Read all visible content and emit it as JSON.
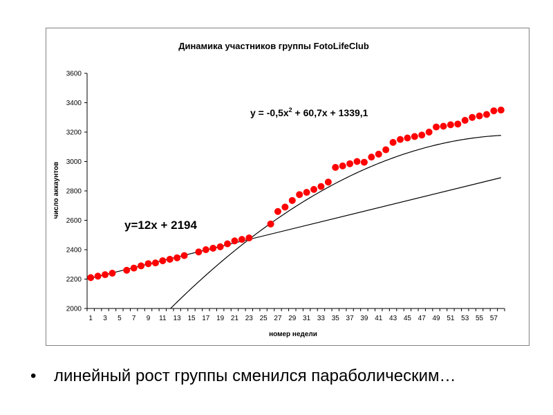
{
  "chart_data": {
    "type": "scatter",
    "title": "Динамика участников группы FotoLifeClub",
    "xlabel": "номер недели",
    "ylabel": "число аккаунтов",
    "ylim": [
      2000,
      3600
    ],
    "yticks": [
      "2000",
      "2200",
      "2400",
      "2600",
      "2800",
      "3000",
      "3200",
      "3400",
      "3600"
    ],
    "xtick_labels": [
      "1",
      "3",
      "5",
      "7",
      "9",
      "11",
      "13",
      "15",
      "17",
      "19",
      "21",
      "23",
      "25",
      "27",
      "29",
      "31",
      "33",
      "35",
      "37",
      "39",
      "41",
      "43",
      "45",
      "47",
      "49",
      "51",
      "53",
      "55",
      "57"
    ],
    "x": [
      1,
      2,
      3,
      4,
      6,
      7,
      8,
      9,
      10,
      11,
      12,
      13,
      14,
      16,
      17,
      18,
      19,
      20,
      21,
      22,
      23,
      26,
      27,
      28,
      29,
      30,
      31,
      32,
      33,
      34,
      35,
      36,
      37,
      38,
      39,
      40,
      41,
      42,
      43,
      44,
      45,
      46,
      47,
      48,
      49,
      50,
      51,
      52,
      53,
      54,
      55,
      56,
      57,
      58
    ],
    "series": [
      {
        "values": [
          2210,
          2220,
          2230,
          2240,
          2260,
          2275,
          2290,
          2305,
          2310,
          2325,
          2335,
          2345,
          2360,
          2385,
          2400,
          2410,
          2420,
          2440,
          2460,
          2470,
          2480,
          2575,
          2660,
          2690,
          2735,
          2775,
          2790,
          2810,
          2830,
          2860,
          2960,
          2970,
          2985,
          3000,
          2995,
          3030,
          3050,
          3080,
          3130,
          3150,
          3160,
          3170,
          3180,
          3200,
          3235,
          3240,
          3250,
          3255,
          3280,
          3300,
          3310,
          3320,
          3345,
          3350
        ],
        "color": "#ff0000"
      }
    ],
    "trendlines": [
      {
        "equation": "y=12x + 2194",
        "slope": 12,
        "intercept": 2194,
        "x_range": [
          1,
          58
        ],
        "color": "#000000"
      },
      {
        "equation_main": "y = -0,5x",
        "equation_exp": "2",
        "equation_rest": " + 60,7x + 1339,1",
        "a": -0.5,
        "b": 60.7,
        "c": 1339.1,
        "x_range": [
          12,
          58
        ],
        "color": "#000000"
      }
    ]
  },
  "caption": {
    "bullet": "•",
    "text": "линейный рост группы сменился параболическим…"
  }
}
